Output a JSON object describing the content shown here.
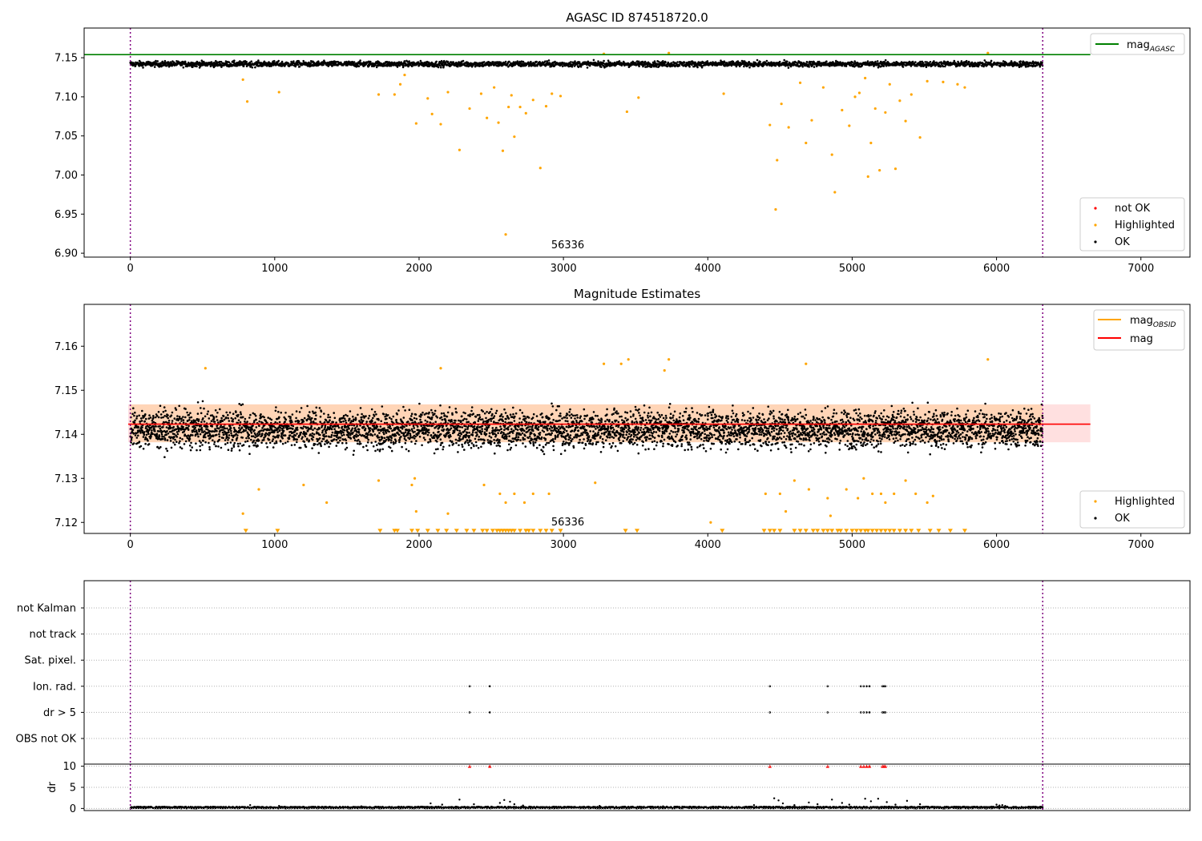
{
  "chart_data": [
    {
      "type": "scatter",
      "title": "AGASC ID 874518720.0",
      "xlabel": "",
      "ylabel": "",
      "xlim": [
        -320,
        7340
      ],
      "ylim": [
        6.895,
        7.188
      ],
      "xticks": [
        "0",
        "1000",
        "2000",
        "3000",
        "4000",
        "5000",
        "6000",
        "7000"
      ],
      "yticks": [
        "6.90",
        "6.95",
        "7.00",
        "7.05",
        "7.10",
        "7.15"
      ],
      "grid": false,
      "annotations": [
        {
          "text": "56336",
          "x": 3030,
          "y": 6.904
        }
      ],
      "vlines": [
        0,
        6320
      ],
      "hline": {
        "y": 7.154,
        "x_end": 6650,
        "color": "#008000"
      },
      "series": [
        {
          "name": "not OK",
          "color": "#ff0000",
          "values": []
        },
        {
          "name": "Highlighted",
          "color": "#ffa500",
          "points": [
            [
              780,
              7.122
            ],
            [
              810,
              7.094
            ],
            [
              1030,
              7.106
            ],
            [
              1720,
              7.103
            ],
            [
              1830,
              7.103
            ],
            [
              1870,
              7.116
            ],
            [
              1900,
              7.128
            ],
            [
              1980,
              7.066
            ],
            [
              2060,
              7.098
            ],
            [
              2090,
              7.078
            ],
            [
              2150,
              7.065
            ],
            [
              2200,
              7.106
            ],
            [
              2280,
              7.032
            ],
            [
              2350,
              7.085
            ],
            [
              2430,
              7.104
            ],
            [
              2470,
              7.073
            ],
            [
              2520,
              7.112
            ],
            [
              2550,
              7.067
            ],
            [
              2580,
              7.031
            ],
            [
              2600,
              6.924
            ],
            [
              2620,
              7.087
            ],
            [
              2640,
              7.102
            ],
            [
              2660,
              7.049
            ],
            [
              2700,
              7.087
            ],
            [
              2740,
              7.079
            ],
            [
              2790,
              7.096
            ],
            [
              2840,
              7.009
            ],
            [
              2880,
              7.088
            ],
            [
              2920,
              7.104
            ],
            [
              2980,
              7.101
            ],
            [
              3280,
              7.155
            ],
            [
              3440,
              7.081
            ],
            [
              3520,
              7.099
            ],
            [
              3730,
              7.156
            ],
            [
              4110,
              7.104
            ],
            [
              4430,
              7.064
            ],
            [
              4470,
              6.956
            ],
            [
              4480,
              7.019
            ],
            [
              4510,
              7.091
            ],
            [
              4560,
              7.061
            ],
            [
              4640,
              7.118
            ],
            [
              4680,
              7.041
            ],
            [
              4720,
              7.07
            ],
            [
              4800,
              7.112
            ],
            [
              4860,
              7.026
            ],
            [
              4880,
              6.978
            ],
            [
              4930,
              7.083
            ],
            [
              4980,
              7.063
            ],
            [
              5020,
              7.1
            ],
            [
              5050,
              7.105
            ],
            [
              5090,
              7.124
            ],
            [
              5110,
              6.998
            ],
            [
              5130,
              7.041
            ],
            [
              5160,
              7.085
            ],
            [
              5190,
              7.006
            ],
            [
              5230,
              7.08
            ],
            [
              5260,
              7.116
            ],
            [
              5300,
              7.008
            ],
            [
              5330,
              7.095
            ],
            [
              5370,
              7.069
            ],
            [
              5410,
              7.103
            ],
            [
              5470,
              7.048
            ],
            [
              5520,
              7.12
            ],
            [
              5630,
              7.119
            ],
            [
              5730,
              7.116
            ],
            [
              5780,
              7.112
            ],
            [
              5940,
              7.156
            ]
          ]
        },
        {
          "name": "OK",
          "color": "#000000",
          "band": [
            7.135,
            7.149
          ],
          "x_range": [
            0,
            6320
          ]
        }
      ],
      "legends": [
        {
          "position": "upper right",
          "entries": [
            {
              "label": "mag",
              "subscript": "AGASC",
              "color": "#008000",
              "kind": "line"
            }
          ]
        },
        {
          "position": "lower right",
          "entries": [
            {
              "label": "not OK",
              "color": "#ff0000",
              "kind": "dot"
            },
            {
              "label": "Highlighted",
              "color": "#ffa500",
              "kind": "dot"
            },
            {
              "label": "OK",
              "color": "#000000",
              "kind": "dot"
            }
          ]
        }
      ]
    },
    {
      "type": "scatter",
      "title": "Magnitude Estimates",
      "xlabel": "",
      "ylabel": "",
      "xlim": [
        -320,
        7340
      ],
      "ylim": [
        7.1175,
        7.1695
      ],
      "xticks": [
        "0",
        "1000",
        "2000",
        "3000",
        "4000",
        "5000",
        "6000",
        "7000"
      ],
      "yticks": [
        "7.12",
        "7.13",
        "7.14",
        "7.15",
        "7.16"
      ],
      "grid": false,
      "annotations": [
        {
          "text": "56336",
          "x": 3030,
          "y": 7.119
        }
      ],
      "vlines": [
        0,
        6320
      ],
      "mag_line": {
        "y": 7.1423,
        "x_end": 6650,
        "color": "#ff0000",
        "band": [
          7.1382,
          7.1468
        ]
      },
      "mag_obsid_band": {
        "x_range": [
          0,
          6320
        ],
        "range": [
          7.1382,
          7.1468
        ],
        "color": "#ffa500"
      },
      "series": [
        {
          "name": "Highlighted",
          "color": "#ffa500",
          "points": [
            [
              780,
              7.122
            ],
            [
              890,
              7.1275
            ],
            [
              1200,
              7.1285
            ],
            [
              1360,
              7.1245
            ],
            [
              1720,
              7.1295
            ],
            [
              1950,
              7.1285
            ],
            [
              1980,
              7.1225
            ],
            [
              1970,
              7.13
            ],
            [
              2150,
              7.155
            ],
            [
              2200,
              7.122
            ],
            [
              2450,
              7.1285
            ],
            [
              2560,
              7.1265
            ],
            [
              2600,
              7.1245
            ],
            [
              2660,
              7.1265
            ],
            [
              2730,
              7.1245
            ],
            [
              2790,
              7.1265
            ],
            [
              2900,
              7.1265
            ],
            [
              3220,
              7.129
            ],
            [
              3280,
              7.156
            ],
            [
              3400,
              7.156
            ],
            [
              3450,
              7.157
            ],
            [
              3700,
              7.1545
            ],
            [
              3730,
              7.157
            ],
            [
              4020,
              7.12
            ],
            [
              4400,
              7.1265
            ],
            [
              4500,
              7.1265
            ],
            [
              4540,
              7.1225
            ],
            [
              4600,
              7.1295
            ],
            [
              4680,
              7.156
            ],
            [
              4700,
              7.1275
            ],
            [
              4830,
              7.1255
            ],
            [
              4850,
              7.1215
            ],
            [
              4960,
              7.1275
            ],
            [
              5040,
              7.1255
            ],
            [
              5080,
              7.13
            ],
            [
              5140,
              7.1265
            ],
            [
              5200,
              7.1265
            ],
            [
              5230,
              7.1245
            ],
            [
              5290,
              7.1265
            ],
            [
              5370,
              7.1295
            ],
            [
              5440,
              7.1265
            ],
            [
              5520,
              7.1245
            ],
            [
              5560,
              7.126
            ],
            [
              5940,
              7.157
            ],
            [
              520,
              7.155
            ]
          ],
          "clipped_x": [
            800,
            1020,
            1730,
            1830,
            1850,
            1950,
            1990,
            2060,
            2130,
            2190,
            2260,
            2330,
            2380,
            2440,
            2470,
            2510,
            2540,
            2560,
            2580,
            2600,
            2620,
            2640,
            2660,
            2700,
            2740,
            2760,
            2790,
            2840,
            2880,
            2920,
            2980,
            3430,
            3510,
            4100,
            4390,
            4430,
            4460,
            4500,
            4600,
            4640,
            4680,
            4730,
            4760,
            4800,
            4830,
            4860,
            4900,
            4920,
            4960,
            5000,
            5030,
            5060,
            5090,
            5110,
            5140,
            5170,
            5200,
            5230,
            5260,
            5290,
            5330,
            5370,
            5410,
            5460,
            5540,
            5600,
            5680,
            5780
          ]
        },
        {
          "name": "OK",
          "color": "#000000",
          "band": [
            7.131,
            7.153
          ],
          "x_range": [
            0,
            6320
          ]
        }
      ],
      "legends": [
        {
          "position": "upper right",
          "entries": [
            {
              "label": "mag",
              "subscript": "OBSID",
              "color": "#ffa500",
              "kind": "line"
            },
            {
              "label": "mag",
              "subscript": "",
              "color": "#ff0000",
              "kind": "line"
            }
          ]
        },
        {
          "position": "lower right",
          "entries": [
            {
              "label": "Highlighted",
              "color": "#ffa500",
              "kind": "dot"
            },
            {
              "label": "OK",
              "color": "#000000",
              "kind": "dot"
            }
          ]
        }
      ]
    },
    {
      "type": "scatter",
      "title": "",
      "xlabel": "",
      "ylabel": "",
      "xlim": [
        -320,
        7340
      ],
      "categories": [
        "not Kalman",
        "not track",
        "Sat. pixel.",
        "Ion. rad.",
        "dr > 5",
        "OBS not OK"
      ],
      "grid": true,
      "vlines": [
        0,
        6320
      ],
      "flag_points": {
        "Ion. rad.": [
          2350,
          2490,
          4430,
          4830,
          5060,
          5080,
          5100,
          5120,
          5210,
          5220,
          5230
        ],
        "dr > 5": [
          2350,
          2490,
          4430,
          4830,
          5060,
          5080,
          5100,
          5120,
          5210,
          5220,
          5230
        ]
      }
    },
    {
      "type": "scatter",
      "title": "",
      "xlabel": "",
      "ylabel": "dr",
      "xlim": [
        -320,
        7340
      ],
      "ylim": [
        -0.5,
        10.5
      ],
      "yticks": [
        "0",
        "5",
        "10"
      ],
      "grid": true,
      "vlines": [
        0,
        6320
      ],
      "capped_x": [
        2350,
        2490,
        4430,
        4830,
        5060,
        5080,
        5100,
        5120,
        5210,
        5220,
        5230
      ],
      "capped_color": "#ff0000",
      "cap_value": 10,
      "outliers": [
        [
          830,
          0.8
        ],
        [
          1030,
          0.6
        ],
        [
          1600,
          0.5
        ],
        [
          2080,
          1.2
        ],
        [
          2160,
          0.9
        ],
        [
          2280,
          2.1
        ],
        [
          2380,
          1.0
        ],
        [
          2560,
          1.3
        ],
        [
          2590,
          2.0
        ],
        [
          2630,
          1.6
        ],
        [
          2660,
          1.0
        ],
        [
          2720,
          0.7
        ],
        [
          3250,
          0.6
        ],
        [
          3690,
          0.5
        ],
        [
          4320,
          0.8
        ],
        [
          4460,
          2.4
        ],
        [
          4490,
          1.9
        ],
        [
          4520,
          1.2
        ],
        [
          4600,
          0.8
        ],
        [
          4700,
          1.4
        ],
        [
          4760,
          1.0
        ],
        [
          4860,
          2.1
        ],
        [
          4930,
          1.3
        ],
        [
          4980,
          0.9
        ],
        [
          5090,
          2.3
        ],
        [
          5130,
          1.7
        ],
        [
          5180,
          2.3
        ],
        [
          5240,
          1.5
        ],
        [
          5300,
          0.9
        ],
        [
          5380,
          1.8
        ],
        [
          5470,
          1.0
        ],
        [
          6000,
          0.9
        ],
        [
          6020,
          0.7
        ],
        [
          6040,
          0.8
        ],
        [
          6060,
          0.6
        ]
      ],
      "series": [
        {
          "name": "",
          "color": "#000000",
          "band": [
            0.0,
            0.45
          ],
          "x_range": [
            0,
            6320
          ]
        }
      ]
    }
  ]
}
